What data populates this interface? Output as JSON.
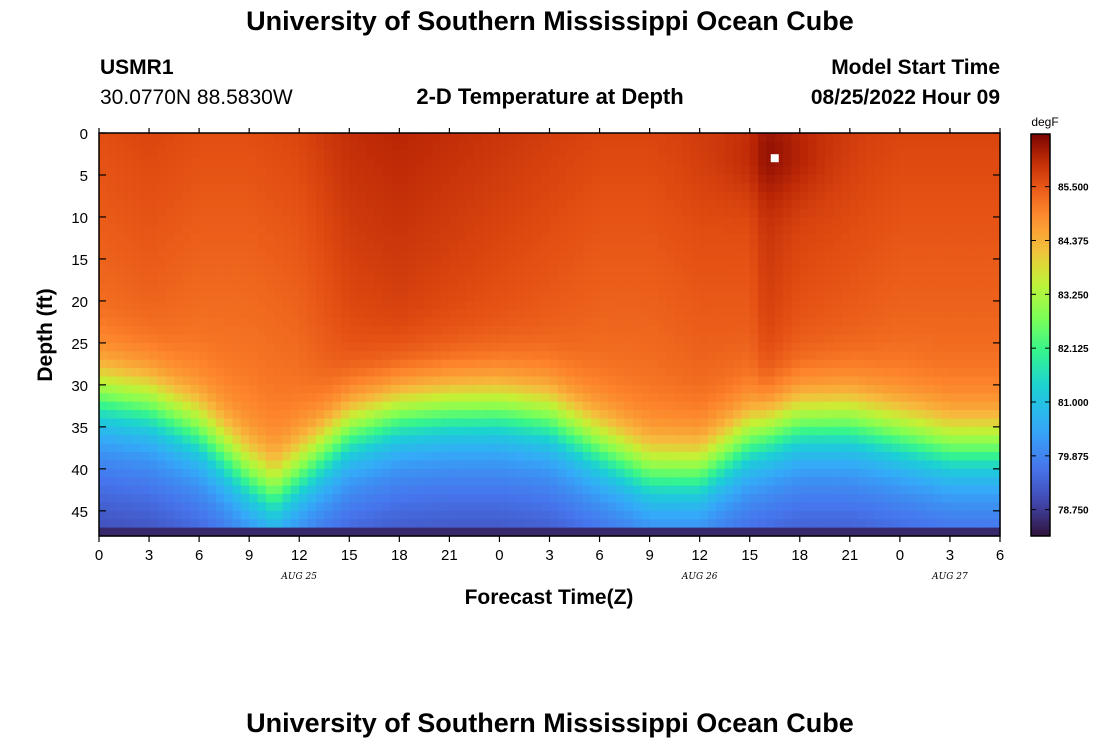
{
  "header": {
    "title": "University of Southern Mississippi Ocean Cube",
    "station_id": "USMR1",
    "station_coords": "30.0770N  88.5830W",
    "plot_title": "2-D Temperature at Depth",
    "model_start_label": "Model Start Time",
    "model_start_value": "08/25/2022 Hour 09"
  },
  "footer": {
    "title": "University of Southern Mississippi Ocean Cube"
  },
  "chart_data": {
    "type": "heatmap",
    "title": "2-D Temperature at Depth",
    "xlabel": "Forecast Time(Z)",
    "ylabel": "Depth (ft)",
    "x_range_hours": [
      0,
      54
    ],
    "y_range": [
      0,
      48
    ],
    "x_tick_labels": [
      "0",
      "3",
      "6",
      "9",
      "12",
      "15",
      "18",
      "21",
      "0",
      "3",
      "6",
      "9",
      "12",
      "15",
      "18",
      "21",
      "0",
      "3",
      "6"
    ],
    "y_ticks": [
      0,
      5,
      10,
      15,
      20,
      25,
      30,
      35,
      40,
      45
    ],
    "date_labels": [
      {
        "label": "AUG 25",
        "hour": 12
      },
      {
        "label": "AUG 26",
        "hour": 36
      },
      {
        "label": "AUG 27",
        "hour": 51
      }
    ],
    "colorbar": {
      "unit": "degF",
      "range": [
        78.2,
        86.6
      ],
      "ticks": [
        85.5,
        84.375,
        83.25,
        82.125,
        81.0,
        79.875,
        78.75
      ],
      "tick_labels": [
        "85.500",
        "84.375",
        "83.250",
        "82.125",
        "81.000",
        "79.875",
        "78.750"
      ]
    },
    "thermocline_depth_ft": [
      {
        "hour": 0,
        "depth": 31
      },
      {
        "hour": 3,
        "depth": 32
      },
      {
        "hour": 6,
        "depth": 35
      },
      {
        "hour": 9,
        "depth": 40.5
      },
      {
        "hour": 10.5,
        "depth": 42.5
      },
      {
        "hour": 12,
        "depth": 40
      },
      {
        "hour": 15,
        "depth": 35
      },
      {
        "hour": 18,
        "depth": 33
      },
      {
        "hour": 21,
        "depth": 32.5
      },
      {
        "hour": 24,
        "depth": 32.5
      },
      {
        "hour": 27,
        "depth": 33.5
      },
      {
        "hour": 30,
        "depth": 37
      },
      {
        "hour": 33,
        "depth": 40
      },
      {
        "hour": 36,
        "depth": 40
      },
      {
        "hour": 39,
        "depth": 36
      },
      {
        "hour": 42,
        "depth": 34
      },
      {
        "hour": 45,
        "depth": 34
      },
      {
        "hour": 48,
        "depth": 35.5
      },
      {
        "hour": 51,
        "depth": 37
      },
      {
        "hour": 54,
        "depth": 37
      }
    ],
    "surface_temp_degF": [
      {
        "hour": 0,
        "temp": 85.6
      },
      {
        "hour": 3,
        "temp": 85.7
      },
      {
        "hour": 6,
        "temp": 85.6
      },
      {
        "hour": 9,
        "temp": 85.6
      },
      {
        "hour": 12,
        "temp": 85.7
      },
      {
        "hour": 15,
        "temp": 86.0
      },
      {
        "hour": 18,
        "temp": 86.1
      },
      {
        "hour": 21,
        "temp": 86.0
      },
      {
        "hour": 24,
        "temp": 85.9
      },
      {
        "hour": 27,
        "temp": 85.8
      },
      {
        "hour": 30,
        "temp": 85.7
      },
      {
        "hour": 33,
        "temp": 85.7
      },
      {
        "hour": 36,
        "temp": 85.8
      },
      {
        "hour": 39,
        "temp": 85.8
      },
      {
        "hour": 40,
        "temp": 86.1
      },
      {
        "hour": 42,
        "temp": 85.9
      },
      {
        "hour": 45,
        "temp": 85.8
      },
      {
        "hour": 48,
        "temp": 85.7
      },
      {
        "hour": 51,
        "temp": 85.7
      },
      {
        "hour": 54,
        "temp": 85.7
      }
    ],
    "marker": {
      "hour": 40.5,
      "depth": 3
    }
  }
}
